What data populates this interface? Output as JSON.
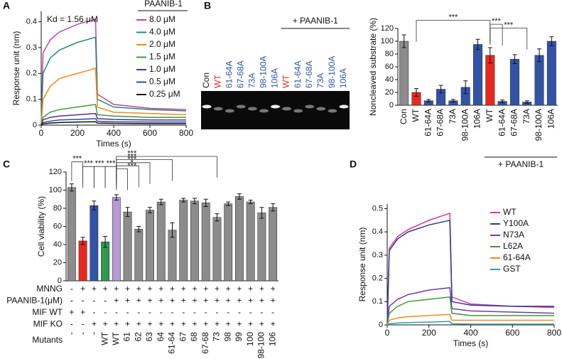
{
  "chart_data": [
    {
      "type": "line",
      "panel": "A",
      "annotation": "Kd = 1.56 μM",
      "legend_title": "PAANIB-1",
      "x_label": "Times (s)",
      "y_label": "Response unit (nm)",
      "x": [
        0,
        10,
        50,
        100,
        200,
        300,
        310,
        400,
        600,
        800
      ],
      "xlim": [
        0,
        800
      ],
      "xticks": [
        0,
        200,
        400,
        600,
        800
      ],
      "ylim": [
        0,
        0.44
      ],
      "yticks": [
        0,
        0.1,
        0.2,
        0.3,
        0.4
      ],
      "legend": "right",
      "series": [
        {
          "name": "8.0 μM",
          "color": "#c9419b",
          "values": [
            0,
            0.28,
            0.33,
            0.36,
            0.39,
            0.41,
            0.12,
            0.08,
            0.065,
            0.06
          ]
        },
        {
          "name": "4.0 μM",
          "color": "#1f8c6f",
          "values": [
            0,
            0.2,
            0.26,
            0.29,
            0.32,
            0.34,
            0.1,
            0.07,
            0.06,
            0.055
          ]
        },
        {
          "name": "2.0 μM",
          "color": "#f08a1c",
          "values": [
            0,
            0.1,
            0.15,
            0.18,
            0.2,
            0.22,
            0.07,
            0.05,
            0.045,
            0.04
          ]
        },
        {
          "name": "1.5 μM",
          "color": "#3a9a3a",
          "values": [
            0,
            0.03,
            0.05,
            0.06,
            0.07,
            0.08,
            0.04,
            0.035,
            0.03,
            0.03
          ]
        },
        {
          "name": "1.0 μM",
          "color": "#5b2d8e",
          "values": [
            0,
            0.02,
            0.03,
            0.035,
            0.04,
            0.045,
            0.025,
            0.022,
            0.02,
            0.02
          ]
        },
        {
          "name": "0.5 μM",
          "color": "#2b4fa8",
          "values": [
            0,
            0.01,
            0.015,
            0.02,
            0.022,
            0.025,
            0.015,
            0.013,
            0.012,
            0.012
          ]
        },
        {
          "name": "0.25 μM",
          "color": "#111111",
          "values": [
            0,
            0.005,
            0.008,
            0.01,
            0.012,
            0.013,
            0.008,
            0.007,
            0.006,
            0.006
          ]
        }
      ]
    },
    {
      "type": "bar",
      "y_label": "Noncleaved substrate (%)",
      "group_label": "+ PAANIB-1",
      "categories": [
        "Con",
        "WT",
        "61-64A",
        "67-68A",
        "73A",
        "98-100A",
        "106A",
        "WT",
        "61-64A",
        "67-68A",
        "73A",
        "98-100A",
        "106A"
      ],
      "values": [
        100,
        20,
        7,
        25,
        7,
        28,
        95,
        78,
        6,
        72,
        5,
        78,
        100
      ],
      "errors": [
        10,
        6,
        2,
        6,
        2,
        10,
        8,
        12,
        2,
        7,
        2,
        10,
        7
      ],
      "colors": [
        "#8c8c8c",
        "#e8281e",
        "#3353a8",
        "#3353a8",
        "#3353a8",
        "#3353a8",
        "#3353a8",
        "#e8281e",
        "#3353a8",
        "#3353a8",
        "#3353a8",
        "#3353a8",
        "#3353a8"
      ],
      "ylim": [
        0,
        120
      ],
      "yticks": [
        0,
        20,
        40,
        60,
        80,
        100,
        120
      ],
      "significance": [
        "***",
        "***",
        "***"
      ]
    },
    {
      "type": "bar",
      "panel": "C",
      "y_label": "Cell viability (%)",
      "values": [
        103,
        44,
        83,
        43,
        92,
        76,
        57,
        78,
        87,
        56,
        89,
        88,
        86,
        70,
        85,
        93,
        87,
        75,
        81
      ],
      "errors": [
        4,
        4,
        5,
        6,
        3,
        5,
        3,
        3,
        3,
        8,
        2,
        3,
        4,
        4,
        2,
        3,
        2,
        6,
        4
      ],
      "colors": [
        "#8c8c8c",
        "#e8281e",
        "#3353a8",
        "#2f9a4a",
        "#b59ad6",
        "#8c8c8c",
        "#8c8c8c",
        "#8c8c8c",
        "#8c8c8c",
        "#8c8c8c",
        "#8c8c8c",
        "#8c8c8c",
        "#8c8c8c",
        "#8c8c8c",
        "#8c8c8c",
        "#8c8c8c",
        "#8c8c8c",
        "#8c8c8c",
        "#8c8c8c"
      ],
      "ylim": [
        0,
        120
      ],
      "yticks": [
        0,
        20,
        40,
        60,
        80,
        100,
        120
      ],
      "significance": [
        "***",
        "***",
        "***",
        "***",
        "***",
        "***",
        "***",
        "*",
        "***"
      ],
      "conditions": [
        {
          "label": "MNNG",
          "values": [
            "-",
            "+",
            "+",
            "+",
            "+",
            "+",
            "+",
            "+",
            "+",
            "+",
            "+",
            "+",
            "+",
            "+",
            "+",
            "+",
            "+",
            "+",
            "+"
          ]
        },
        {
          "label": "PAANIB-1(μM)",
          "values": [
            "-",
            "-",
            "-",
            "-",
            "+",
            "+",
            "+",
            "+",
            "+",
            "+",
            "+",
            "+",
            "+",
            "+",
            "+",
            "+",
            "+",
            "+",
            "+"
          ]
        },
        {
          "label": "MIF WT",
          "values": [
            "+",
            "+",
            "-",
            "-",
            "-",
            "-",
            "-",
            "-",
            "-",
            "-",
            "-",
            "-",
            "-",
            "-",
            "-",
            "-",
            "-",
            "-",
            "-"
          ]
        },
        {
          "label": "MIF KO",
          "values": [
            "-",
            "-",
            "+",
            "+",
            "+",
            "+",
            "+",
            "+",
            "+",
            "+",
            "+",
            "+",
            "+",
            "+",
            "+",
            "+",
            "+",
            "+",
            "+"
          ]
        },
        {
          "label": "Mutants",
          "values": [
            "-",
            "-",
            "-",
            "WT",
            "WT",
            "61",
            "62",
            "63",
            "64",
            "61-64",
            "67",
            "68",
            "67-68",
            "73",
            "98",
            "99",
            "100",
            "98-100",
            "106"
          ]
        }
      ]
    },
    {
      "type": "line",
      "panel": "D",
      "x_label": "Times (s)",
      "y_label": "Response unit (nm)",
      "x": [
        0,
        10,
        50,
        100,
        200,
        300,
        310,
        400,
        600,
        800
      ],
      "xlim": [
        0,
        800
      ],
      "xticks": [
        0,
        200,
        400,
        600,
        800
      ],
      "ylim": [
        0,
        0.52
      ],
      "yticks": [
        0,
        0.1,
        0.2,
        0.3,
        0.4,
        0.5
      ],
      "legend": "right",
      "series": [
        {
          "name": "WT",
          "color": "#e0388f",
          "values": [
            0,
            0.33,
            0.38,
            0.41,
            0.45,
            0.48,
            0.12,
            0.09,
            0.08,
            0.075
          ]
        },
        {
          "name": "Y100A",
          "color": "#2e3a98",
          "values": [
            0,
            0.32,
            0.37,
            0.4,
            0.43,
            0.45,
            0.1,
            0.085,
            0.08,
            0.08
          ]
        },
        {
          "name": "N73A",
          "color": "#7a3aa0",
          "values": [
            0,
            0.08,
            0.11,
            0.13,
            0.15,
            0.16,
            0.07,
            0.06,
            0.055,
            0.05
          ]
        },
        {
          "name": "L62A",
          "color": "#3a9a3a",
          "values": [
            0,
            0.05,
            0.08,
            0.1,
            0.11,
            0.12,
            0.05,
            0.04,
            0.04,
            0.04
          ]
        },
        {
          "name": "61-64A",
          "color": "#f08a1c",
          "values": [
            0,
            0.02,
            0.03,
            0.035,
            0.04,
            0.045,
            0.02,
            0.02,
            0.02,
            0.02
          ]
        },
        {
          "name": "GST",
          "color": "#2aa0a8",
          "values": [
            0,
            0.005,
            0.008,
            0.01,
            0.012,
            0.015,
            0.005,
            0.003,
            0.003,
            0.003
          ]
        }
      ]
    }
  ],
  "gel": {
    "panel": "B",
    "group_label": "+ PAANIB-1",
    "lanes": [
      "Con",
      "WT",
      "61-64A",
      "67-68A",
      "73A",
      "98-100A",
      "106A",
      "WT",
      "61-64A",
      "67-68A",
      "73A",
      "98-100A",
      "106A"
    ],
    "lane_colors": [
      "#111111",
      "#e8281e",
      "#3353a8",
      "#3353a8",
      "#3353a8",
      "#3353a8",
      "#3353a8",
      "#e8281e",
      "#3353a8",
      "#3353a8",
      "#3353a8",
      "#3353a8",
      "#3353a8"
    ]
  }
}
